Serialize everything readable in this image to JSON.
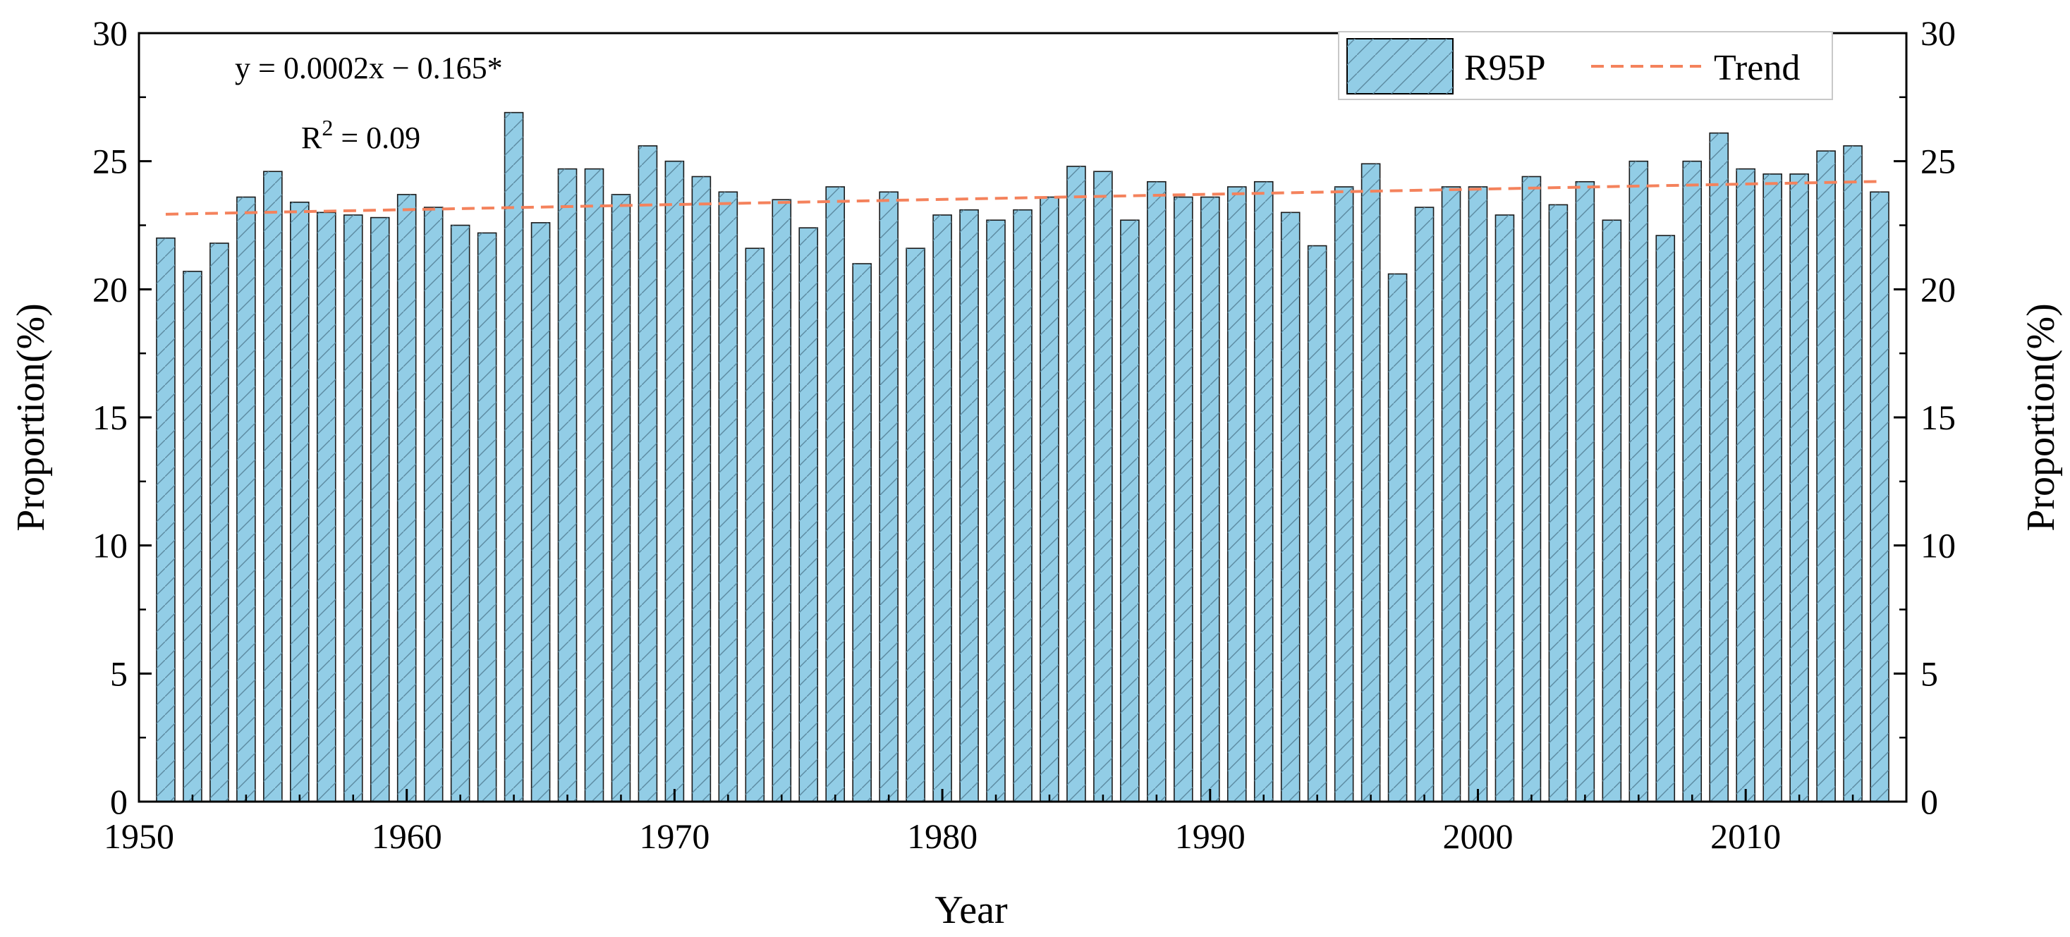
{
  "chart_data": {
    "type": "bar",
    "xlabel": "Year",
    "ylabel_left": "Proportion(%)",
    "ylabel_right": "Proportion(%)",
    "xlim": [
      1950,
      2016
    ],
    "ylim": [
      0,
      30
    ],
    "x_ticks": [
      "1950",
      "1960",
      "1970",
      "1980",
      "1990",
      "2000",
      "2010"
    ],
    "y_ticks": [
      "0",
      "5",
      "10",
      "15",
      "20",
      "25",
      "30"
    ],
    "series": [
      {
        "name": "R95P",
        "color": "#92CDE6",
        "hatch": "diagonal",
        "x": [
          1951,
          1952,
          1953,
          1954,
          1955,
          1956,
          1957,
          1958,
          1959,
          1960,
          1961,
          1962,
          1963,
          1964,
          1965,
          1966,
          1967,
          1968,
          1969,
          1970,
          1971,
          1972,
          1973,
          1974,
          1975,
          1976,
          1977,
          1978,
          1979,
          1980,
          1981,
          1982,
          1983,
          1984,
          1985,
          1986,
          1987,
          1988,
          1989,
          1990,
          1991,
          1992,
          1993,
          1994,
          1995,
          1996,
          1997,
          1998,
          1999,
          2000,
          2001,
          2002,
          2003,
          2004,
          2005,
          2006,
          2007,
          2008,
          2009,
          2010,
          2011,
          2012,
          2013,
          2014,
          2015
        ],
        "values": [
          22.0,
          20.7,
          21.8,
          23.6,
          24.6,
          23.4,
          23.0,
          22.9,
          22.8,
          23.7,
          23.2,
          22.5,
          22.2,
          26.9,
          22.6,
          24.7,
          24.7,
          23.7,
          25.6,
          25.0,
          24.4,
          23.8,
          21.6,
          23.5,
          22.4,
          24.0,
          21.0,
          23.8,
          21.6,
          22.9,
          23.1,
          22.7,
          23.1,
          23.6,
          24.8,
          24.6,
          22.7,
          24.2,
          23.6,
          23.6,
          24.0,
          24.2,
          23.0,
          21.7,
          24.0,
          24.9,
          20.6,
          23.2,
          24.0,
          24.0,
          22.9,
          24.4,
          23.3,
          24.2,
          22.7,
          25.0,
          22.1,
          25.0,
          26.1,
          24.7,
          24.5,
          24.5,
          25.4,
          25.6,
          23.8
        ]
      },
      {
        "name": "Trend",
        "color": "#F4825C",
        "style": "dashed",
        "x": [
          1951,
          2015
        ],
        "values": [
          22.93,
          24.21
        ]
      }
    ],
    "annotations": {
      "equation": "y = 0.0002x − 0.165*",
      "r2_prefix": "R",
      "r2_sup": "2",
      "r2_value": " = 0.09"
    },
    "legend": {
      "placement": "top-right",
      "entries": [
        "R95P",
        "Trend"
      ]
    }
  }
}
